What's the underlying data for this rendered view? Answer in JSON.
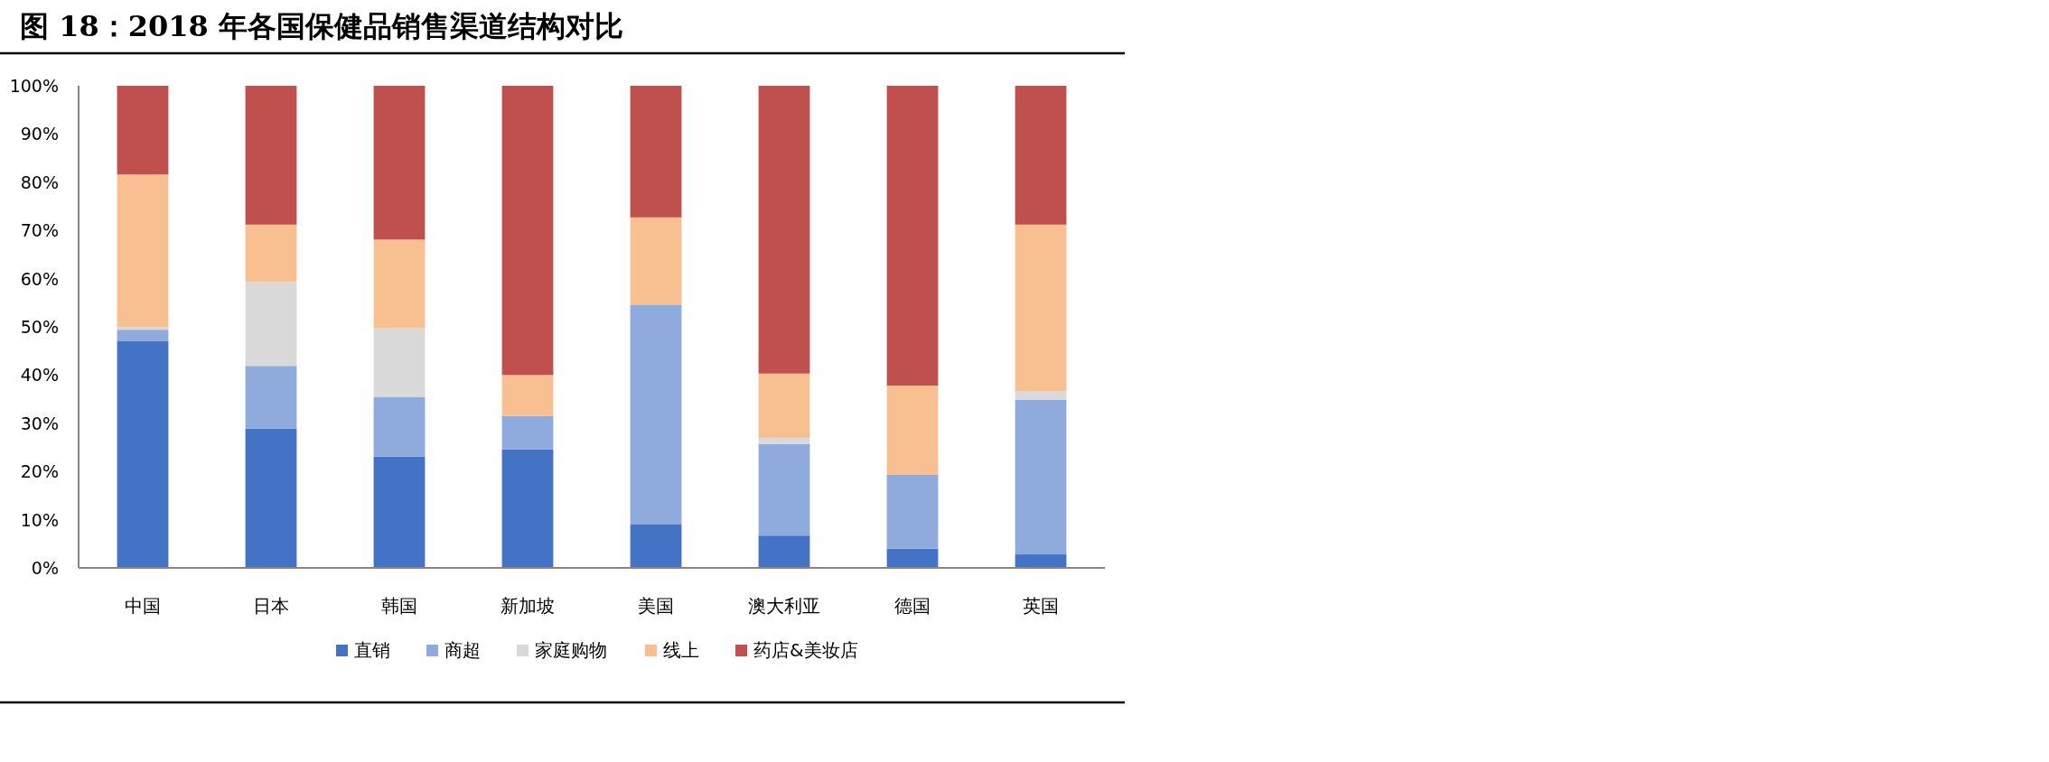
{
  "chart_data": {
    "type": "bar",
    "stacked": true,
    "title": "图 18：2018 年各国保健品销售渠道结构对比",
    "categories": [
      "中国",
      "日本",
      "韩国",
      "新加坡",
      "美国",
      "澳大利亚",
      "德国",
      "英国"
    ],
    "series": [
      {
        "name": "直销",
        "color": "#4472c4",
        "values": [
          47.0,
          28.9,
          23.1,
          24.6,
          9.1,
          6.7,
          4.0,
          2.8
        ]
      },
      {
        "name": "商超",
        "color": "#8faadc",
        "values": [
          2.4,
          13.0,
          12.3,
          6.9,
          45.5,
          19.0,
          15.3,
          32.1
        ]
      },
      {
        "name": "家庭购物",
        "color": "#d9d9d9",
        "values": [
          0.5,
          17.4,
          14.3,
          0,
          0,
          1.3,
          0,
          1.7
        ]
      },
      {
        "name": "线上",
        "color": "#f8bf90",
        "values": [
          31.7,
          11.9,
          18.4,
          8.5,
          18.1,
          13.3,
          18.5,
          34.6
        ]
      },
      {
        "name": "药店&美妆店",
        "color": "#c0504d",
        "values": [
          18.4,
          28.8,
          31.9,
          60.0,
          27.3,
          59.7,
          62.2,
          28.8
        ]
      }
    ],
    "ylim": [
      0,
      100
    ],
    "yticks": [
      {
        "value": 0,
        "label": "0%"
      },
      {
        "value": 10,
        "label": "10%"
      },
      {
        "value": 20,
        "label": "20%"
      },
      {
        "value": 30,
        "label": "30%"
      },
      {
        "value": 40,
        "label": "40%"
      },
      {
        "value": 50,
        "label": "50%"
      },
      {
        "value": 60,
        "label": "60%"
      },
      {
        "value": 70,
        "label": "70%"
      },
      {
        "value": 80,
        "label": "80%"
      },
      {
        "value": 90,
        "label": "90%"
      },
      {
        "value": 100,
        "label": "100%"
      }
    ],
    "legend": "bottom"
  }
}
